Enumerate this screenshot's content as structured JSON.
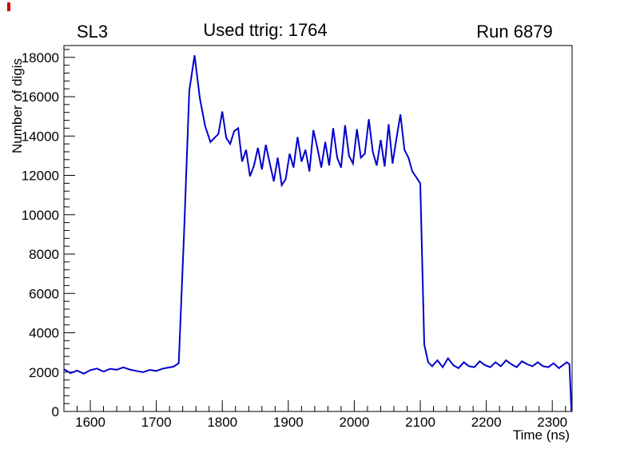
{
  "canvas": {
    "background": "#ffffff",
    "corner_mark_color": "#cc0000"
  },
  "chart_data": {
    "type": "line",
    "title_left": "SL3",
    "title_center": "Used ttrig: 1764",
    "title_right": "Run 6879",
    "xlabel": "Time (ns)",
    "ylabel": "Number of digis",
    "xlim": [
      1560,
      2330
    ],
    "ylim": [
      0,
      18600
    ],
    "x_ticks": [
      1600,
      1700,
      1800,
      1900,
      2000,
      2100,
      2200,
      2300
    ],
    "x_minor_step": 20,
    "y_ticks": [
      0,
      2000,
      4000,
      6000,
      8000,
      10000,
      12000,
      14000,
      16000,
      18000
    ],
    "y_minor_step": 400,
    "grid": false,
    "line_color": "#0000cc",
    "series": [
      {
        "name": "digis-vs-time",
        "points": [
          [
            1560,
            2150
          ],
          [
            1570,
            1950
          ],
          [
            1580,
            2080
          ],
          [
            1590,
            1920
          ],
          [
            1600,
            2100
          ],
          [
            1610,
            2180
          ],
          [
            1620,
            2030
          ],
          [
            1630,
            2170
          ],
          [
            1640,
            2120
          ],
          [
            1650,
            2240
          ],
          [
            1660,
            2130
          ],
          [
            1670,
            2060
          ],
          [
            1680,
            2000
          ],
          [
            1690,
            2110
          ],
          [
            1700,
            2060
          ],
          [
            1710,
            2180
          ],
          [
            1718,
            2230
          ],
          [
            1726,
            2280
          ],
          [
            1734,
            2450
          ],
          [
            1742,
            9000
          ],
          [
            1750,
            16300
          ],
          [
            1758,
            18100
          ],
          [
            1766,
            15900
          ],
          [
            1774,
            14500
          ],
          [
            1782,
            13700
          ],
          [
            1788,
            13900
          ],
          [
            1794,
            14100
          ],
          [
            1800,
            15250
          ],
          [
            1806,
            13900
          ],
          [
            1812,
            13600
          ],
          [
            1818,
            14250
          ],
          [
            1824,
            14400
          ],
          [
            1830,
            12700
          ],
          [
            1836,
            13300
          ],
          [
            1842,
            11950
          ],
          [
            1848,
            12500
          ],
          [
            1854,
            13400
          ],
          [
            1860,
            12300
          ],
          [
            1866,
            13550
          ],
          [
            1872,
            12600
          ],
          [
            1878,
            11700
          ],
          [
            1884,
            12900
          ],
          [
            1890,
            11500
          ],
          [
            1896,
            11800
          ],
          [
            1902,
            13100
          ],
          [
            1908,
            12400
          ],
          [
            1914,
            13950
          ],
          [
            1920,
            12700
          ],
          [
            1926,
            13300
          ],
          [
            1932,
            12200
          ],
          [
            1938,
            14300
          ],
          [
            1944,
            13400
          ],
          [
            1950,
            12400
          ],
          [
            1956,
            13700
          ],
          [
            1962,
            12500
          ],
          [
            1968,
            14400
          ],
          [
            1974,
            12900
          ],
          [
            1980,
            12400
          ],
          [
            1986,
            14550
          ],
          [
            1992,
            13000
          ],
          [
            1998,
            12600
          ],
          [
            2004,
            14350
          ],
          [
            2010,
            12900
          ],
          [
            2016,
            13100
          ],
          [
            2022,
            14850
          ],
          [
            2028,
            13200
          ],
          [
            2034,
            12500
          ],
          [
            2040,
            13800
          ],
          [
            2046,
            12450
          ],
          [
            2052,
            14600
          ],
          [
            2058,
            12600
          ],
          [
            2064,
            13900
          ],
          [
            2070,
            15100
          ],
          [
            2076,
            13300
          ],
          [
            2082,
            12900
          ],
          [
            2088,
            12200
          ],
          [
            2094,
            11900
          ],
          [
            2100,
            11600
          ],
          [
            2106,
            3400
          ],
          [
            2112,
            2500
          ],
          [
            2118,
            2300
          ],
          [
            2126,
            2600
          ],
          [
            2134,
            2250
          ],
          [
            2142,
            2700
          ],
          [
            2150,
            2350
          ],
          [
            2158,
            2200
          ],
          [
            2166,
            2500
          ],
          [
            2174,
            2300
          ],
          [
            2182,
            2250
          ],
          [
            2190,
            2550
          ],
          [
            2198,
            2350
          ],
          [
            2206,
            2250
          ],
          [
            2214,
            2500
          ],
          [
            2222,
            2300
          ],
          [
            2230,
            2600
          ],
          [
            2238,
            2400
          ],
          [
            2246,
            2250
          ],
          [
            2254,
            2550
          ],
          [
            2262,
            2400
          ],
          [
            2270,
            2300
          ],
          [
            2278,
            2500
          ],
          [
            2286,
            2300
          ],
          [
            2294,
            2250
          ],
          [
            2302,
            2450
          ],
          [
            2310,
            2200
          ],
          [
            2316,
            2350
          ],
          [
            2322,
            2500
          ],
          [
            2326,
            2400
          ],
          [
            2329,
            0
          ]
        ]
      }
    ]
  }
}
